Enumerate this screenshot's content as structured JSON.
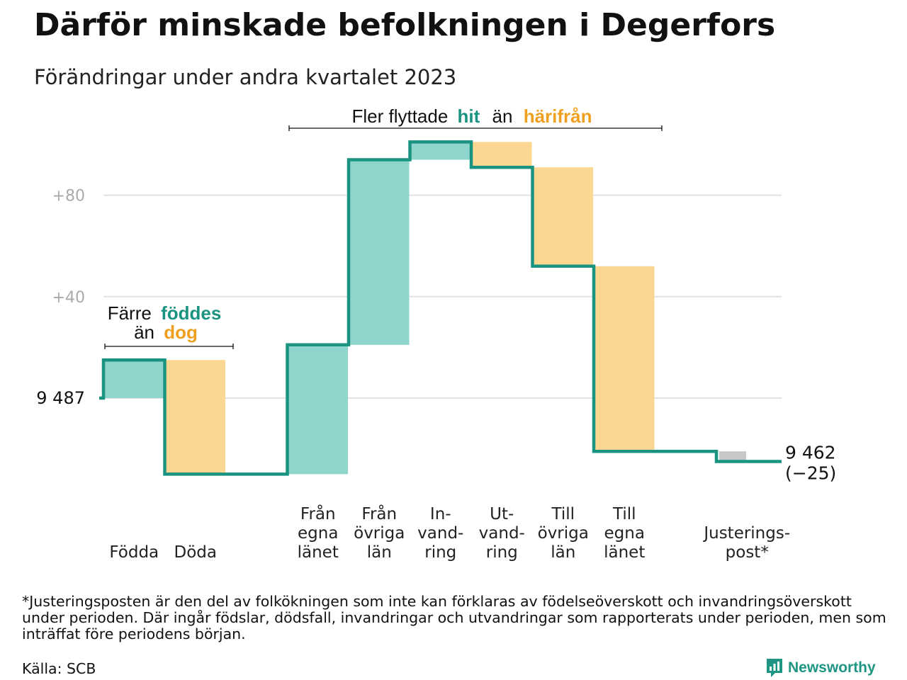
{
  "title": "Därför minskade befolkningen i Degerfors",
  "subtitle": "Förändringar under andra kvartalet 2023",
  "footnote": "*Justeringsposten är den del av folkökningen som inte kan förklaras av födelseöverskott och invandringsöverskott under perioden. Där ingår födslar, dödsfall, invandringar och utvandringar som rapporterats under perioden, men som inträffat före periodens början.",
  "source": "Källa: SCB",
  "brand": "Newsworthy",
  "colors": {
    "increase": "#8ed5cc",
    "decrease": "#fcd791",
    "adjustment": "#c8c8c8",
    "line": "#1a9481",
    "teal_text": "#1a9481",
    "orange_text": "#f0a020",
    "grid": "#e2e2e2"
  },
  "annotations": {
    "birth": {
      "part1": "Färre",
      "hit": "föddes",
      "part2": "än",
      "dog": "dog"
    },
    "migration": {
      "part1": "Fler flyttade",
      "hit": "hit",
      "part2": "än",
      "harifran": "härifrån"
    }
  },
  "chart_data": {
    "type": "waterfall",
    "start_label": "9  487",
    "end_label_1": "9 462",
    "end_label_2": "(−25)",
    "start_value": 0,
    "yticks": [
      {
        "value": 80,
        "label": "+80"
      },
      {
        "value": 40,
        "label": "+40"
      }
    ],
    "ylim": [
      -33,
      103
    ],
    "steps": [
      {
        "label_lines": [
          "Födda"
        ],
        "delta": 15,
        "kind": "increase"
      },
      {
        "label_lines": [
          "Döda"
        ],
        "delta": -45,
        "kind": "decrease"
      },
      {
        "label_lines": [
          ""
        ],
        "delta": 0,
        "kind": "gap"
      },
      {
        "label_lines": [
          "Från",
          "egna",
          "länet"
        ],
        "delta": 51,
        "kind": "increase"
      },
      {
        "label_lines": [
          "Från",
          "övriga",
          "län"
        ],
        "delta": 73,
        "kind": "increase"
      },
      {
        "label_lines": [
          "In-",
          "vand-",
          "ring"
        ],
        "delta": 7,
        "kind": "increase"
      },
      {
        "label_lines": [
          "Ut-",
          "vand-",
          "ring"
        ],
        "delta": -10,
        "kind": "decrease"
      },
      {
        "label_lines": [
          "Till",
          "övriga",
          "län"
        ],
        "delta": -39,
        "kind": "decrease"
      },
      {
        "label_lines": [
          "Till",
          "egna",
          "länet"
        ],
        "delta": -73,
        "kind": "decrease"
      },
      {
        "label_lines": [
          ""
        ],
        "delta": 0,
        "kind": "gap"
      },
      {
        "label_lines": [
          "Justerings-",
          "post*"
        ],
        "delta": -4,
        "kind": "adjustment"
      }
    ]
  }
}
